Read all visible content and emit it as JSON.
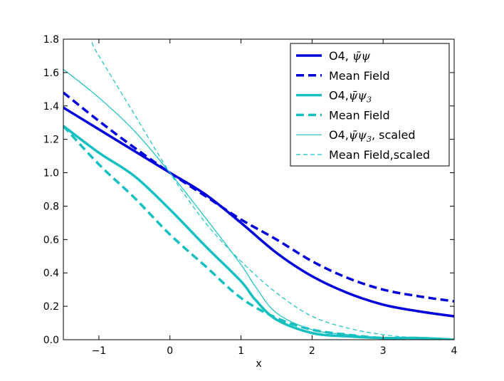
{
  "chart_data": {
    "type": "line",
    "title": "",
    "xlabel": "x",
    "ylabel": "",
    "xlim": [
      -1.5,
      4
    ],
    "ylim": [
      0,
      1.8
    ],
    "xticks": [
      -1,
      0,
      1,
      2,
      3,
      4
    ],
    "xtick_labels": [
      "−1",
      "0",
      "1",
      "2",
      "3",
      "4"
    ],
    "yticks": [
      0.0,
      0.2,
      0.4,
      0.6,
      0.8,
      1.0,
      1.2,
      1.4,
      1.6,
      1.8
    ],
    "ytick_labels": [
      "0.0",
      "0.2",
      "0.4",
      "0.6",
      "0.8",
      "1.0",
      "1.2",
      "1.4",
      "1.6",
      "1.8"
    ],
    "grid": false,
    "legend_position": "top-right",
    "series": [
      {
        "name": "O4, ψ̄ψ",
        "legend_prefix": "O4, ",
        "legend_math": "ψ̄ψ",
        "legend_sub": "",
        "legend_suffix": "",
        "color": "#0000dd",
        "style": "solid",
        "width": "thick",
        "x": [
          -1.5,
          -1.0,
          -0.5,
          0.0,
          0.5,
          1.0,
          1.5,
          2.0,
          2.5,
          3.0,
          3.5,
          4.0
        ],
        "y": [
          1.39,
          1.26,
          1.13,
          1.0,
          0.87,
          0.7,
          0.52,
          0.38,
          0.28,
          0.21,
          0.17,
          0.14
        ]
      },
      {
        "name": "Mean Field",
        "legend_prefix": "Mean Field",
        "legend_math": "",
        "legend_sub": "",
        "legend_suffix": "",
        "color": "#0000dd",
        "style": "dashed",
        "width": "thick",
        "x": [
          -1.5,
          -1.0,
          -0.5,
          0.0,
          0.5,
          1.0,
          1.5,
          2.0,
          2.5,
          3.0,
          3.5,
          4.0
        ],
        "y": [
          1.48,
          1.31,
          1.15,
          1.0,
          0.86,
          0.72,
          0.6,
          0.47,
          0.37,
          0.3,
          0.26,
          0.23
        ]
      },
      {
        "name": "O4, ψ̄ψ₃",
        "legend_prefix": "O4,",
        "legend_math": "ψ̄ψ",
        "legend_sub": "3",
        "legend_suffix": "",
        "color": "#17c0c0",
        "style": "solid",
        "width": "thick",
        "x": [
          -1.5,
          -1.0,
          -0.5,
          0.0,
          0.5,
          1.0,
          1.2,
          1.5,
          2.0,
          2.5,
          3.0,
          3.5,
          4.0
        ],
        "y": [
          1.28,
          1.12,
          0.98,
          0.78,
          0.56,
          0.35,
          0.24,
          0.12,
          0.04,
          0.02,
          0.01,
          0.01,
          0.0
        ]
      },
      {
        "name": "Mean Field",
        "legend_prefix": "Mean Field",
        "legend_math": "",
        "legend_sub": "",
        "legend_suffix": "",
        "color": "#17c0c0",
        "style": "dashed",
        "width": "thick",
        "x": [
          -1.5,
          -1.0,
          -0.5,
          0.0,
          0.5,
          1.0,
          1.5,
          2.0,
          2.5,
          3.0,
          3.5,
          4.0
        ],
        "y": [
          1.28,
          1.05,
          0.85,
          0.63,
          0.44,
          0.25,
          0.13,
          0.06,
          0.03,
          0.01,
          0.01,
          0.0
        ]
      },
      {
        "name": "O4, ψ̄ψ₃, scaled",
        "legend_prefix": "O4,",
        "legend_math": "ψ̄ψ",
        "legend_sub": "3",
        "legend_suffix": ", scaled",
        "color": "#17c0c0",
        "style": "solid",
        "width": "thin",
        "x": [
          -1.5,
          -1.0,
          -0.5,
          0.0,
          0.5,
          1.0,
          1.2,
          1.5,
          2.0,
          2.5,
          3.0,
          3.5,
          4.0
        ],
        "y": [
          1.62,
          1.45,
          1.25,
          1.0,
          0.73,
          0.45,
          0.32,
          0.16,
          0.06,
          0.03,
          0.01,
          0.01,
          0.0
        ]
      },
      {
        "name": "Mean Field,scaled",
        "legend_prefix": "Mean Field,scaled",
        "legend_math": "",
        "legend_sub": "",
        "legend_suffix": "",
        "color": "#17c0c0",
        "style": "dashed",
        "width": "thin",
        "x": [
          -1.1,
          -1.0,
          -0.5,
          0.0,
          0.5,
          1.0,
          1.5,
          2.0,
          2.5,
          3.0,
          3.5,
          4.0
        ],
        "y": [
          1.78,
          1.7,
          1.35,
          1.0,
          0.7,
          0.47,
          0.28,
          0.14,
          0.07,
          0.03,
          0.01,
          0.0
        ]
      }
    ]
  }
}
